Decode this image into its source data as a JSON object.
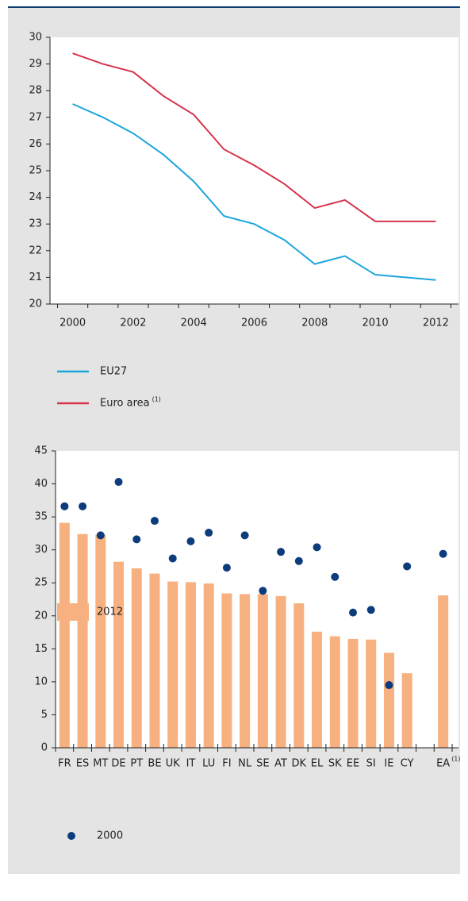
{
  "chart_data": [
    {
      "type": "line",
      "x": [
        2000,
        2001,
        2002,
        2003,
        2004,
        2005,
        2006,
        2007,
        2008,
        2009,
        2010,
        2011,
        2012
      ],
      "series": [
        {
          "name": "EU27",
          "color": "#1ea6dc",
          "values": [
            27.5,
            27.0,
            26.4,
            25.6,
            24.6,
            23.3,
            23.0,
            22.4,
            21.5,
            21.8,
            21.1,
            21.0,
            20.9
          ]
        },
        {
          "name": "Euro area",
          "note": "(1)",
          "color": "#d8344c",
          "values": [
            29.4,
            29.0,
            28.7,
            27.8,
            27.1,
            25.8,
            25.2,
            24.5,
            23.6,
            23.9,
            23.1,
            23.1,
            23.1
          ]
        }
      ],
      "xlim": [
        1999.25,
        2012.75
      ],
      "xticks": [
        2000,
        2002,
        2004,
        2006,
        2008,
        2010,
        2012
      ],
      "ylim": [
        20,
        30
      ],
      "yticks": [
        20,
        21,
        22,
        23,
        24,
        25,
        26,
        27,
        28,
        29,
        30
      ]
    },
    {
      "type": "bar",
      "categories": [
        "FR",
        "ES",
        "MT",
        "DE",
        "PT",
        "BE",
        "UK",
        "IT",
        "LU",
        "FI",
        "NL",
        "SE",
        "AT",
        "DK",
        "EL",
        "SK",
        "EE",
        "SI",
        "IE",
        "CY",
        null,
        "EA"
      ],
      "category_note": "(1)",
      "series": [
        {
          "name": "2012",
          "color": "#f7b07f",
          "values": [
            34.1,
            32.4,
            32.3,
            28.2,
            27.2,
            26.4,
            25.2,
            25.1,
            24.9,
            23.4,
            23.3,
            23.3,
            23.0,
            21.9,
            17.6,
            16.9,
            16.5,
            16.4,
            14.4,
            11.3,
            null,
            23.1
          ]
        },
        {
          "name": "2000",
          "color": "#0d3c7c",
          "marker": "dot",
          "values": [
            36.6,
            36.6,
            32.2,
            40.3,
            31.6,
            34.4,
            28.7,
            31.3,
            32.6,
            27.3,
            32.2,
            23.8,
            29.7,
            28.3,
            30.4,
            25.9,
            20.5,
            20.9,
            9.5,
            27.5,
            null,
            29.4
          ]
        }
      ],
      "ylim": [
        0,
        45
      ],
      "yticks": [
        0,
        5,
        10,
        15,
        20,
        25,
        30,
        35,
        40,
        45
      ]
    }
  ]
}
